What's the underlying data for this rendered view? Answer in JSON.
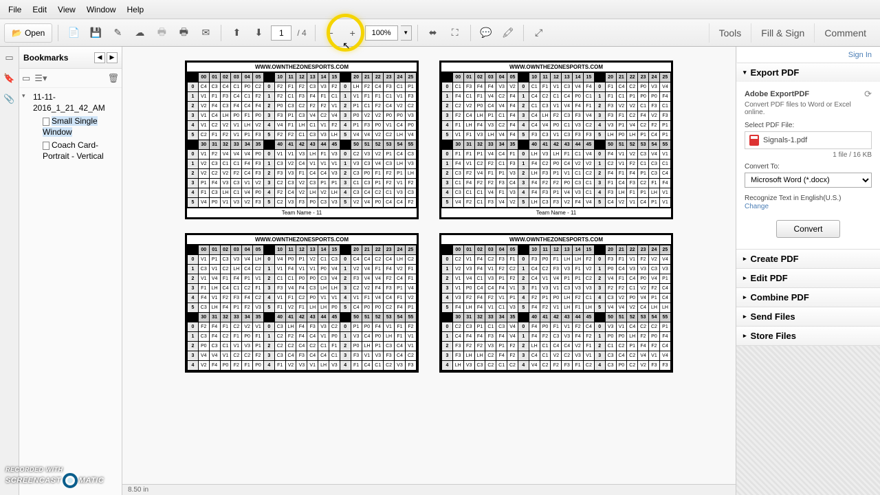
{
  "menu": [
    "File",
    "Edit",
    "View",
    "Window",
    "Help"
  ],
  "toolbar": {
    "open": "Open",
    "page_current": "1",
    "page_total": "/ 4",
    "zoom": "100%"
  },
  "right_tabs": [
    "Tools",
    "Fill & Sign",
    "Comment"
  ],
  "signin": "Sign In",
  "bookmarks": {
    "title": "Bookmarks",
    "root": "11-11-2016_1_21_42_AM",
    "children": [
      {
        "label": "Small Single Window",
        "selected": true
      },
      {
        "label": "Coach Card-Portrait - Vertical",
        "selected": false
      }
    ]
  },
  "export": {
    "title": "Export PDF",
    "brand": "Adobe ExportPDF",
    "desc": "Convert PDF files to Word or Excel online.",
    "select_label": "Select PDF File:",
    "filename": "Signals-1.pdf",
    "filemeta": "1 file / 16 KB",
    "convert_to_label": "Convert To:",
    "convert_to_value": "Microsoft Word (*.docx)",
    "recognize": "Recognize Text in English(U.S.)",
    "change": "Change",
    "convert_btn": "Convert"
  },
  "right_sections": [
    "Create PDF",
    "Edit PDF",
    "Combine PDF",
    "Send Files",
    "Store Files"
  ],
  "card": {
    "site": "WWW.OWNTHEZONESPORTS.COM",
    "footer": "Team Name - 11",
    "header_groups": [
      [
        "00",
        "01",
        "02",
        "03",
        "04",
        "05"
      ],
      [
        "10",
        "11",
        "12",
        "13",
        "14",
        "15"
      ],
      [
        "20",
        "21",
        "22",
        "23",
        "24",
        "25"
      ],
      [
        "30",
        "31",
        "32",
        "33",
        "34",
        "35"
      ],
      [
        "40",
        "41",
        "42",
        "43",
        "44",
        "45"
      ],
      [
        "50",
        "51",
        "52",
        "53",
        "54",
        "55"
      ]
    ],
    "row_nums": [
      "0",
      "1",
      "2",
      "3",
      "4",
      "5"
    ],
    "cells_pool": [
      "C1",
      "C2",
      "C3",
      "C4",
      "F1",
      "F2",
      "F3",
      "F4",
      "V1",
      "V2",
      "V3",
      "V4",
      "P0",
      "P1",
      "LH"
    ]
  },
  "status": "8.50 in",
  "watermark": {
    "line1": "RECORDED WITH",
    "line2a": "SCREENCAST",
    "line2b": "MATIC"
  }
}
